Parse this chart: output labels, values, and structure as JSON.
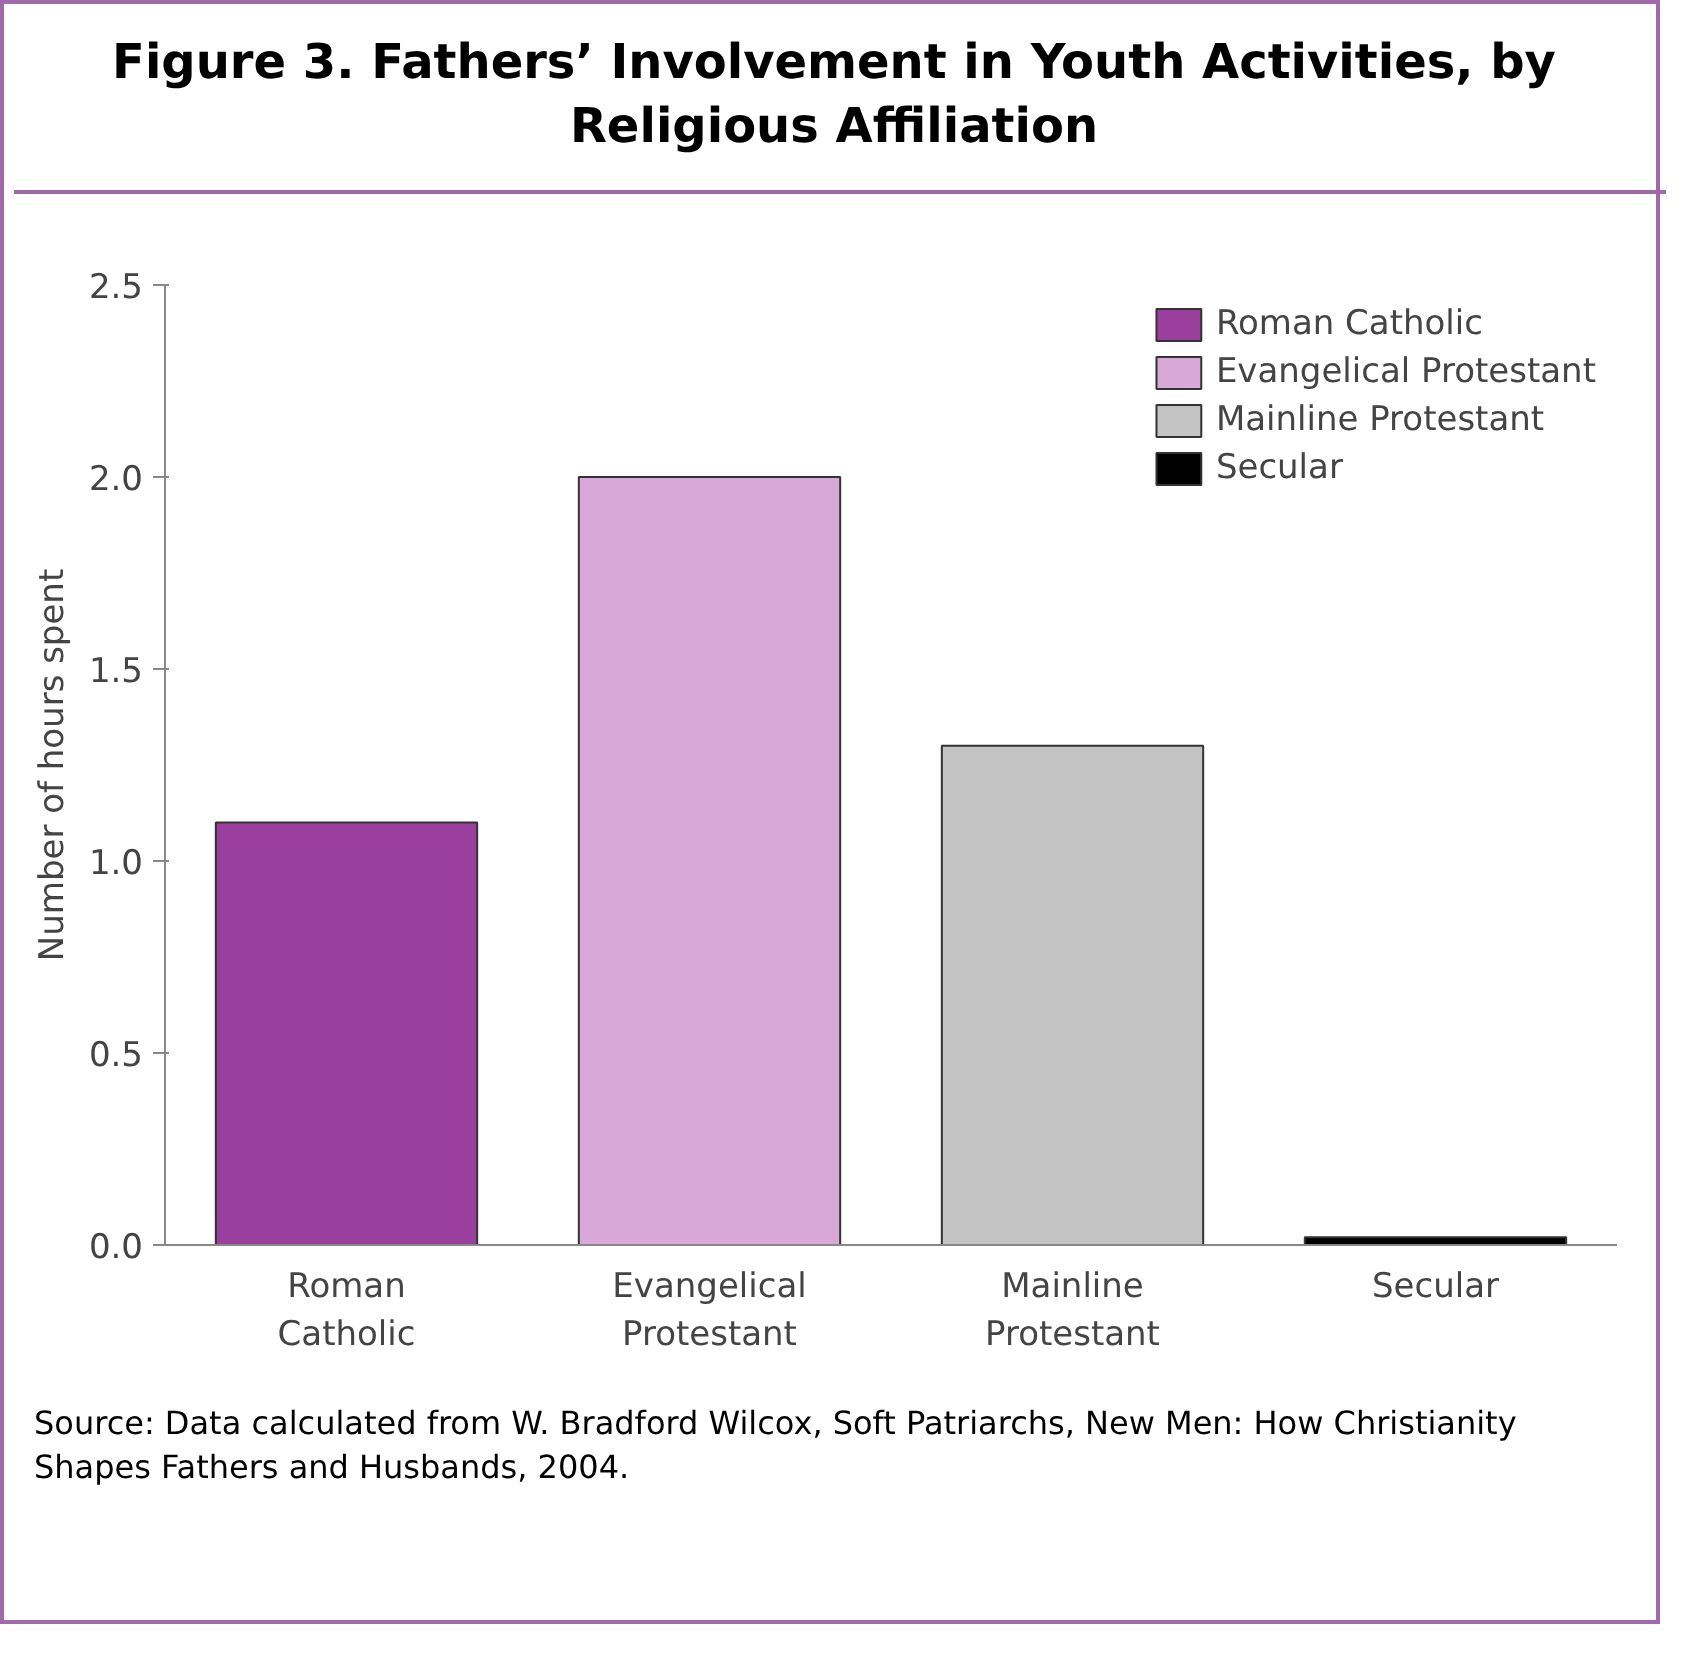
{
  "chart_data": {
    "type": "bar",
    "title": "Figure 3. Fathers’ Involvement in Youth Activities, by Religious Affiliation",
    "ylabel": "Number of hours spent",
    "categories": [
      "Roman Catholic",
      "Evangelical Protestant",
      "Mainline Protestant",
      "Secular"
    ],
    "series": [
      {
        "name": "Roman Catholic",
        "color": "#9a3f9e",
        "values": [
          1.1,
          null,
          null,
          null
        ]
      },
      {
        "name": "Evangelical Protestant",
        "color": "#d8a8d8",
        "values": [
          null,
          2.0,
          null,
          null
        ]
      },
      {
        "name": "Mainline Protestant",
        "color": "#c4c4c4",
        "values": [
          null,
          null,
          1.3,
          null
        ]
      },
      {
        "name": "Secular",
        "color": "#000000",
        "values": [
          null,
          null,
          null,
          0.02
        ]
      }
    ],
    "ylim": [
      0,
      2.5
    ],
    "yticks": [
      {
        "value": 0,
        "label": "0.0"
      },
      {
        "value": 0.5,
        "label": "0.5"
      },
      {
        "value": 1,
        "label": "1.0"
      },
      {
        "value": 1.5,
        "label": "1.5"
      },
      {
        "value": 2,
        "label": "2.0"
      },
      {
        "value": 2.5,
        "label": "2.5"
      }
    ],
    "grid": false,
    "legend": "top right",
    "annotations": [
      "Source: Data calculated from W. Bradford Wilcox, Soft Patriarchs, New Men: How Christianity Shapes Fathers and Husbands, 2004."
    ]
  }
}
